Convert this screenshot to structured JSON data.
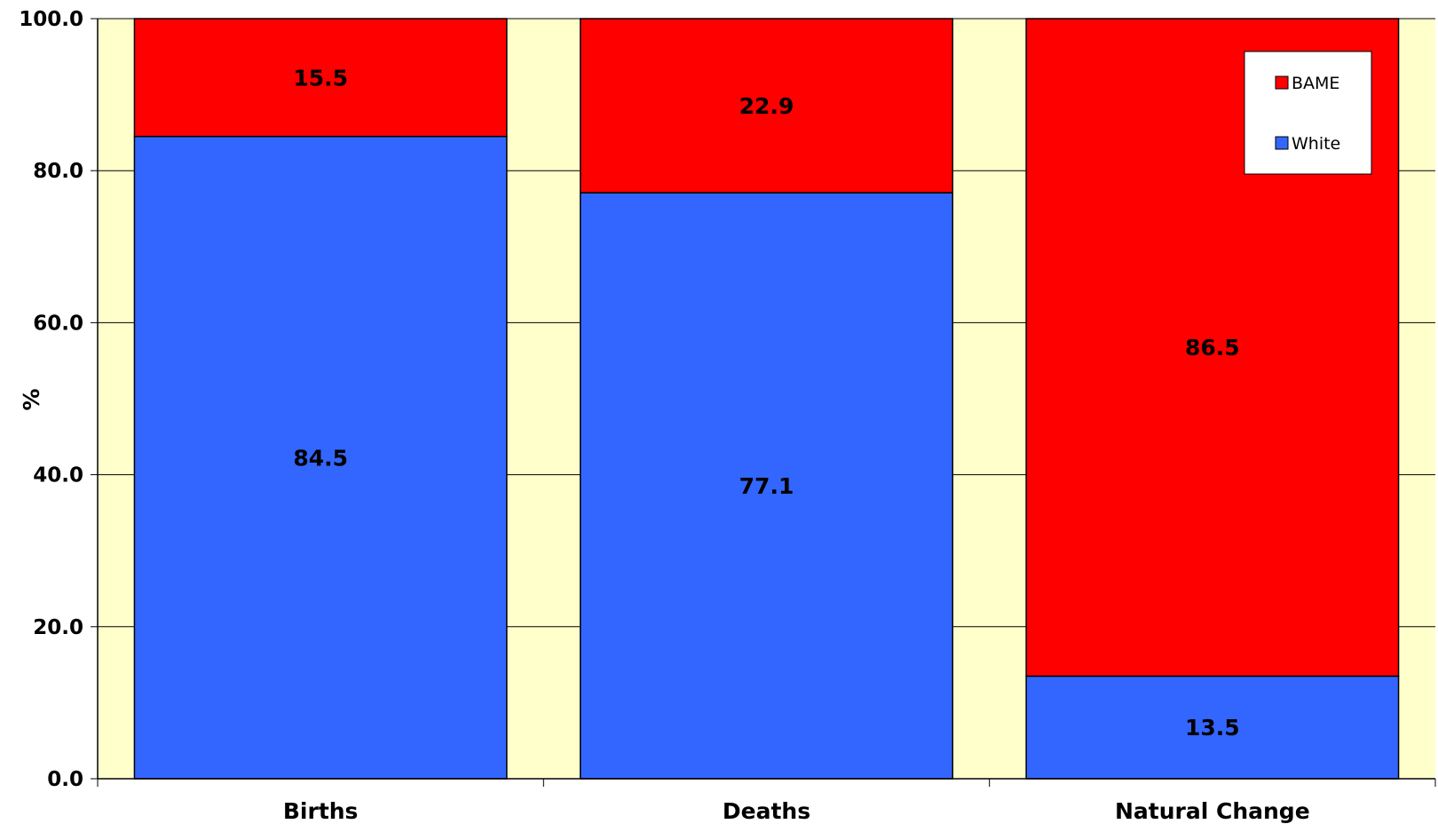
{
  "chart_data": {
    "type": "bar",
    "stacked": true,
    "categories": [
      "Births",
      "Deaths",
      "Natural Change"
    ],
    "series": [
      {
        "name": "White",
        "values": [
          84.5,
          77.1,
          13.5
        ],
        "color": "#3366ff"
      },
      {
        "name": "BAME",
        "values": [
          15.5,
          22.9,
          86.5
        ],
        "color": "#ff0000"
      }
    ],
    "data_labels": {
      "White": [
        "84.5",
        "77.1",
        "13.5"
      ],
      "BAME": [
        "15.5",
        "22.9",
        "86.5"
      ]
    },
    "ylabel": "%",
    "xlabel": "",
    "ylim": [
      0,
      100
    ],
    "yticks": [
      "0.0",
      "20.0",
      "40.0",
      "60.0",
      "80.0",
      "100.0"
    ],
    "grid": true,
    "plot_background": "#ffffcc",
    "legend": {
      "position": "top-right",
      "entries": [
        "BAME",
        "White"
      ]
    }
  }
}
